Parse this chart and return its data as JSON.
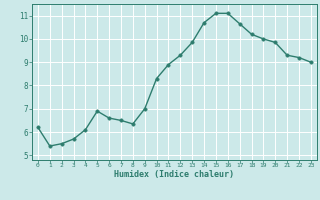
{
  "x": [
    0,
    1,
    2,
    3,
    4,
    5,
    6,
    7,
    8,
    9,
    10,
    11,
    12,
    13,
    14,
    15,
    16,
    17,
    18,
    19,
    20,
    21,
    22,
    23
  ],
  "y": [
    6.2,
    5.4,
    5.5,
    5.7,
    6.1,
    6.9,
    6.6,
    6.5,
    6.35,
    7.0,
    8.3,
    8.9,
    9.3,
    9.85,
    10.7,
    11.1,
    11.1,
    10.65,
    10.2,
    10.0,
    9.85,
    9.3,
    9.2,
    9.0
  ],
  "xlabel": "Humidex (Indice chaleur)",
  "ylim": [
    4.8,
    11.5
  ],
  "xlim": [
    -0.5,
    23.5
  ],
  "yticks": [
    5,
    6,
    7,
    8,
    9,
    10,
    11
  ],
  "xticks": [
    0,
    1,
    2,
    3,
    4,
    5,
    6,
    7,
    8,
    9,
    10,
    11,
    12,
    13,
    14,
    15,
    16,
    17,
    18,
    19,
    20,
    21,
    22,
    23
  ],
  "line_color": "#2e7d6e",
  "marker_color": "#2e7d6e",
  "bg_color": "#cce9e9",
  "grid_color": "#ffffff",
  "tick_label_color": "#2e7d6e",
  "xlabel_color": "#2e7d6e",
  "marker_size": 2.5,
  "line_width": 1.0
}
